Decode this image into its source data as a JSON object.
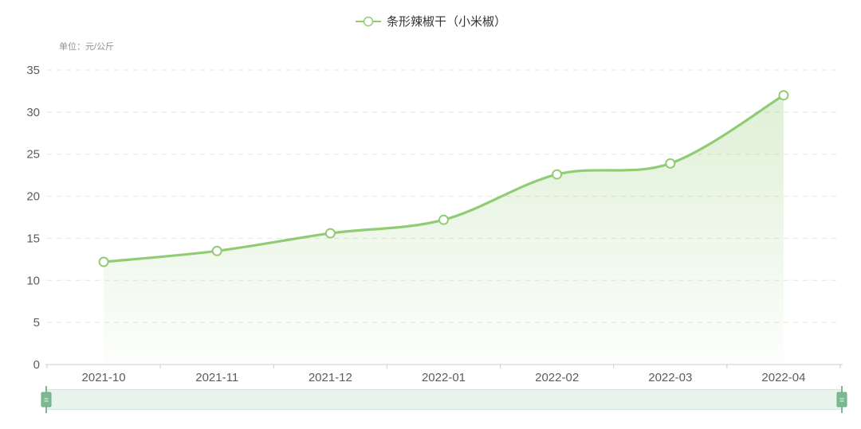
{
  "legend": {
    "items": [
      {
        "label": "条形辣椒干（小米椒）"
      }
    ]
  },
  "unit_label": "单位：元/公斤",
  "chart_data": {
    "type": "area",
    "categories": [
      "2021-10",
      "2021-11",
      "2021-12",
      "2022-01",
      "2022-02",
      "2022-03",
      "2022-04"
    ],
    "series": [
      {
        "name": "条形辣椒干（小米椒）",
        "values": [
          12.2,
          13.5,
          15.6,
          17.2,
          22.6,
          23.9,
          32.0
        ]
      }
    ],
    "title": "",
    "xlabel": "",
    "ylabel": "单位：元/公斤",
    "ylim": [
      0,
      35
    ],
    "y_ticks": [
      0,
      5,
      10,
      15,
      20,
      25,
      30,
      35
    ],
    "grid": "horizontal-dashed",
    "legend_position": "top-center",
    "smooth": true,
    "has_datazoom_slider": true
  },
  "colors": {
    "line": "#91cc75",
    "marker_fill": "#ffffff",
    "area_top": "rgba(145,204,117,0.32)",
    "area_bottom": "rgba(145,204,117,0.02)",
    "grid_line": "#e4e4e4",
    "axis_line": "#cccccc",
    "tick_text": "#5c5c5c",
    "legend_text": "#333333",
    "unit_text": "#919191",
    "slider_fill": "#e6f4eb",
    "slider_handle": "#7cb993"
  }
}
